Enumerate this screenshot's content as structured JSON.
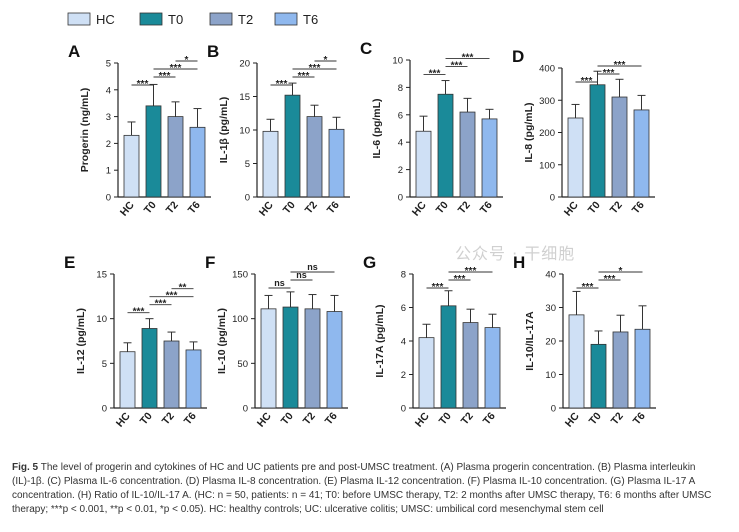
{
  "legend": [
    {
      "name": "HC",
      "color": "#cfe0f5"
    },
    {
      "name": "T0",
      "color": "#1a8a99"
    },
    {
      "name": "T2",
      "color": "#8ca3c9"
    },
    {
      "name": "T6",
      "color": "#8fb8ee"
    }
  ],
  "chart_data": [
    {
      "type": "bar",
      "panel": "A",
      "ylabel": "Progerin (ng/mL)",
      "categories": [
        "HC",
        "T0",
        "T2",
        "T6"
      ],
      "values": [
        2.3,
        3.4,
        3.0,
        2.6
      ],
      "errors": [
        0.5,
        0.8,
        0.55,
        0.7
      ],
      "ylim": [
        0,
        5
      ],
      "yticks": [
        0,
        1,
        2,
        3,
        4,
        5
      ],
      "significance": [
        {
          "from": 0,
          "to": 1,
          "label": "***"
        },
        {
          "from": 1,
          "to": 2,
          "label": "***"
        },
        {
          "from": 1,
          "to": 3,
          "label": "***"
        },
        {
          "from": 2,
          "to": 3,
          "label": "*"
        }
      ]
    },
    {
      "type": "bar",
      "panel": "B",
      "ylabel": "IL-1β (pg/mL)",
      "categories": [
        "HC",
        "T0",
        "T2",
        "T6"
      ],
      "values": [
        9.8,
        15.2,
        12.0,
        10.1
      ],
      "errors": [
        1.8,
        1.8,
        1.7,
        1.8
      ],
      "ylim": [
        0,
        20
      ],
      "yticks": [
        0,
        5,
        10,
        15,
        20
      ],
      "significance": [
        {
          "from": 0,
          "to": 1,
          "label": "***"
        },
        {
          "from": 1,
          "to": 2,
          "label": "***"
        },
        {
          "from": 1,
          "to": 3,
          "label": "***"
        },
        {
          "from": 2,
          "to": 3,
          "label": "*"
        }
      ]
    },
    {
      "type": "bar",
      "panel": "C",
      "ylabel": "IL-6 (pg/mL)",
      "categories": [
        "HC",
        "T0",
        "T2",
        "T6"
      ],
      "values": [
        4.8,
        7.5,
        6.2,
        5.7
      ],
      "errors": [
        1.1,
        1.0,
        1.0,
        0.7
      ],
      "ylim": [
        0,
        10
      ],
      "yticks": [
        0,
        2,
        4,
        6,
        8,
        10
      ],
      "significance": [
        {
          "from": 0,
          "to": 1,
          "label": "***"
        },
        {
          "from": 1,
          "to": 2,
          "label": "***"
        },
        {
          "from": 1,
          "to": 3,
          "label": "***"
        }
      ]
    },
    {
      "type": "bar",
      "panel": "D",
      "ylabel": "IL-8 (pg/mL)",
      "categories": [
        "HC",
        "T0",
        "T2",
        "T6"
      ],
      "values": [
        245,
        348,
        310,
        270
      ],
      "errors": [
        42,
        42,
        55,
        45
      ],
      "ylim": [
        0,
        400
      ],
      "yticks": [
        0,
        100,
        200,
        300,
        400
      ],
      "significance": [
        {
          "from": 0,
          "to": 1,
          "label": "***"
        },
        {
          "from": 1,
          "to": 2,
          "label": "***"
        },
        {
          "from": 1,
          "to": 3,
          "label": "***"
        }
      ]
    },
    {
      "type": "bar",
      "panel": "E",
      "ylabel": "IL-12 (pg/mL)",
      "categories": [
        "HC",
        "T0",
        "T2",
        "T6"
      ],
      "values": [
        6.3,
        8.9,
        7.5,
        6.5
      ],
      "errors": [
        1.0,
        1.1,
        1.0,
        0.9
      ],
      "ylim": [
        0,
        15
      ],
      "yticks": [
        0,
        5,
        10,
        15
      ],
      "significance": [
        {
          "from": 0,
          "to": 1,
          "label": "***"
        },
        {
          "from": 1,
          "to": 2,
          "label": "***"
        },
        {
          "from": 1,
          "to": 3,
          "label": "***"
        },
        {
          "from": 2,
          "to": 3,
          "label": "**"
        }
      ]
    },
    {
      "type": "bar",
      "panel": "F",
      "ylabel": "IL-10 (pg/mL)",
      "categories": [
        "HC",
        "T0",
        "T2",
        "T6"
      ],
      "values": [
        111,
        113,
        111,
        108
      ],
      "errors": [
        15,
        17,
        16,
        18
      ],
      "ylim": [
        0,
        150
      ],
      "yticks": [
        0,
        50,
        100,
        150
      ],
      "significance": [
        {
          "from": 0,
          "to": 1,
          "label": "ns"
        },
        {
          "from": 1,
          "to": 2,
          "label": "ns"
        },
        {
          "from": 1,
          "to": 3,
          "label": "ns"
        }
      ]
    },
    {
      "type": "bar",
      "panel": "G",
      "ylabel": "IL-17A (pg/mL)",
      "categories": [
        "HC",
        "T0",
        "T2",
        "T6"
      ],
      "values": [
        4.2,
        6.1,
        5.1,
        4.8
      ],
      "errors": [
        0.8,
        0.9,
        0.8,
        0.8
      ],
      "ylim": [
        0,
        8
      ],
      "yticks": [
        0,
        2,
        4,
        6,
        8
      ],
      "significance": [
        {
          "from": 0,
          "to": 1,
          "label": "***"
        },
        {
          "from": 1,
          "to": 2,
          "label": "***"
        },
        {
          "from": 1,
          "to": 3,
          "label": "***"
        }
      ]
    },
    {
      "type": "bar",
      "panel": "H",
      "ylabel": "IL-10/IL-17A",
      "categories": [
        "HC",
        "T0",
        "T2",
        "T6"
      ],
      "values": [
        27.8,
        19.0,
        22.7,
        23.5
      ],
      "errors": [
        7.0,
        4.0,
        5.0,
        7.0
      ],
      "ylim": [
        0,
        40
      ],
      "yticks": [
        0,
        10,
        20,
        30,
        40
      ],
      "significance": [
        {
          "from": 0,
          "to": 1,
          "label": "***"
        },
        {
          "from": 1,
          "to": 2,
          "label": "***"
        },
        {
          "from": 1,
          "to": 3,
          "label": "*"
        }
      ]
    }
  ],
  "caption": {
    "figno": "Fig. 5",
    "text": "The level of progerin and cytokines of HC and UC patients pre and post-UMSC treatment. (A) Plasma progerin concentration. (B) Plasma interleukin (IL)-1β. (C) Plasma IL-6 concentration. (D) Plasma IL-8 concentration. (E) Plasma IL-12 concentration. (F) Plasma IL-10 concentration. (G) Plasma IL-17 A concentration. (H) Ratio of IL-10/IL-17 A. (HC: n = 50, patients: n = 41; T0: before UMSC therapy, T2: 2 months after UMSC therapy, T6: 6 months after UMSC therapy; ***p < 0.001, **p < 0.01, *p < 0.05). HC: healthy controls; UC: ulcerative colitis; UMSC: umbilical cord mesenchymal stem cell"
  },
  "watermark": "公众号 · 干细胞"
}
